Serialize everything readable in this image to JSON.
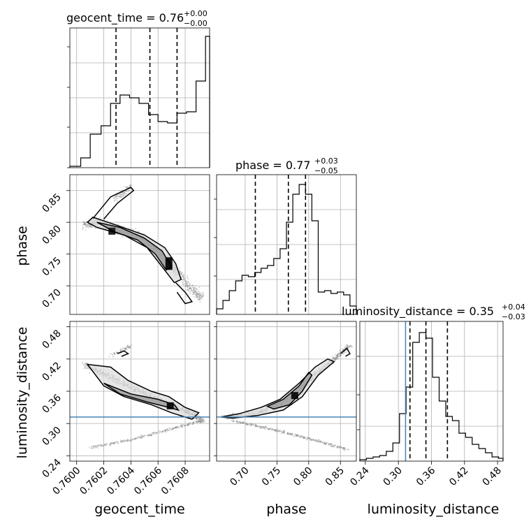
{
  "figure": {
    "background": "#ffffff",
    "truth_color": "#4682b4"
  },
  "chart_data": [
    {
      "type": "histogram",
      "panel": "geocent_time-1d",
      "title_text": "geocent_time = 0.76",
      "title_sup": "+0.00",
      "title_sub": "−0.00",
      "xlim": [
        0.75995,
        0.76098
      ],
      "quantile_lines": [
        0.76029,
        0.76054,
        0.76074
      ],
      "bins_x": [
        0.75995,
        0.76003,
        0.7601,
        0.76018,
        0.76025,
        0.76032,
        0.76039,
        0.76046,
        0.76053,
        0.7606,
        0.76067,
        0.76074,
        0.76081,
        0.76088,
        0.76095
      ],
      "bins_h": [
        0.01,
        0.07,
        0.24,
        0.3,
        0.46,
        0.52,
        0.5,
        0.46,
        0.38,
        0.33,
        0.32,
        0.39,
        0.4,
        0.62,
        0.94
      ]
    },
    {
      "type": "scatter-contour",
      "panel": "phase-vs-geocent_time",
      "xlim": [
        0.75995,
        0.76098
      ],
      "ylim": [
        0.655,
        0.875
      ],
      "ylabel": "phase",
      "yticks": [
        0.7,
        0.75,
        0.8,
        0.85
      ],
      "density_path": [
        [
          0.76005,
          0.795
        ],
        [
          0.76015,
          0.8
        ],
        [
          0.7603,
          0.79
        ],
        [
          0.76045,
          0.78
        ],
        [
          0.76055,
          0.765
        ],
        [
          0.76065,
          0.745
        ],
        [
          0.76075,
          0.72
        ],
        [
          0.76085,
          0.695
        ],
        [
          0.76093,
          0.68
        ]
      ],
      "contours": [
        [
          [
            0.76008,
            0.8
          ],
          [
            0.76012,
            0.808
          ],
          [
            0.7603,
            0.795
          ],
          [
            0.7605,
            0.78
          ],
          [
            0.76065,
            0.76
          ],
          [
            0.76073,
            0.735
          ],
          [
            0.76077,
            0.71
          ],
          [
            0.76072,
            0.705
          ],
          [
            0.76063,
            0.73
          ],
          [
            0.76052,
            0.76
          ],
          [
            0.76035,
            0.78
          ],
          [
            0.76015,
            0.792
          ],
          [
            0.76008,
            0.8
          ]
        ],
        [
          [
            0.76015,
            0.8
          ],
          [
            0.76032,
            0.792
          ],
          [
            0.7605,
            0.775
          ],
          [
            0.76063,
            0.755
          ],
          [
            0.7607,
            0.73
          ],
          [
            0.76066,
            0.725
          ],
          [
            0.76058,
            0.75
          ],
          [
            0.76045,
            0.772
          ],
          [
            0.76028,
            0.785
          ],
          [
            0.76015,
            0.8
          ]
        ],
        [
          [
            0.76012,
            0.806
          ],
          [
            0.76025,
            0.84
          ],
          [
            0.7604,
            0.855
          ],
          [
            0.76042,
            0.85
          ],
          [
            0.7603,
            0.83
          ],
          [
            0.7602,
            0.805
          ]
        ],
        [
          [
            0.76073,
            0.705
          ],
          [
            0.7608,
            0.69
          ],
          [
            0.76085,
            0.675
          ],
          [
            0.7608,
            0.672
          ],
          [
            0.76074,
            0.69
          ]
        ]
      ]
    },
    {
      "type": "histogram",
      "panel": "phase-1d",
      "title_text": "phase = 0.77",
      "title_sup": "+0.03",
      "title_sub": "−0.05",
      "xlim": [
        0.655,
        0.875
      ],
      "quantile_lines": [
        0.716,
        0.768,
        0.795
      ],
      "bins_x": [
        0.655,
        0.665,
        0.675,
        0.685,
        0.695,
        0.705,
        0.715,
        0.725,
        0.735,
        0.745,
        0.755,
        0.765,
        0.775,
        0.785,
        0.795,
        0.805,
        0.815,
        0.825,
        0.835,
        0.845,
        0.855,
        0.865
      ],
      "bins_h": [
        0.04,
        0.1,
        0.17,
        0.24,
        0.28,
        0.27,
        0.3,
        0.33,
        0.35,
        0.4,
        0.47,
        0.66,
        0.86,
        0.93,
        0.86,
        0.67,
        0.16,
        0.17,
        0.15,
        0.16,
        0.14,
        0.06
      ]
    },
    {
      "type": "scatter-contour",
      "panel": "luminosity_distance-vs-geocent_time",
      "xlim": [
        0.75995,
        0.76098
      ],
      "ylim": [
        0.23,
        0.49
      ],
      "ylabel": "luminosity_distance",
      "xlabel": "geocent_time",
      "yticks": [
        0.24,
        0.3,
        0.36,
        0.42,
        0.48
      ],
      "xticks": [
        "0.7600",
        "0.7602",
        "0.7604",
        "0.7606",
        "0.7608"
      ],
      "xtick_values": [
        0.76,
        0.7602,
        0.7604,
        0.7606,
        0.7608
      ],
      "truth_y": 0.312,
      "contours": [
        [
          [
            0.76008,
            0.41
          ],
          [
            0.76025,
            0.405
          ],
          [
            0.76038,
            0.38
          ],
          [
            0.76055,
            0.36
          ],
          [
            0.76068,
            0.35
          ],
          [
            0.7608,
            0.33
          ],
          [
            0.7609,
            0.32
          ],
          [
            0.76085,
            0.308
          ],
          [
            0.7607,
            0.32
          ],
          [
            0.76055,
            0.335
          ],
          [
            0.76035,
            0.35
          ],
          [
            0.7602,
            0.37
          ],
          [
            0.76008,
            0.41
          ]
        ],
        [
          [
            0.7602,
            0.375
          ],
          [
            0.7604,
            0.355
          ],
          [
            0.7606,
            0.345
          ],
          [
            0.76072,
            0.335
          ],
          [
            0.76075,
            0.325
          ],
          [
            0.76068,
            0.33
          ],
          [
            0.76052,
            0.34
          ],
          [
            0.76032,
            0.355
          ],
          [
            0.7602,
            0.375
          ]
        ],
        [
          [
            0.7603,
            0.43
          ],
          [
            0.76035,
            0.435
          ],
          [
            0.76038,
            0.43
          ],
          [
            0.76033,
            0.425
          ]
        ]
      ]
    },
    {
      "type": "scatter-contour",
      "panel": "luminosity_distance-vs-phase",
      "xlim": [
        0.655,
        0.875
      ],
      "ylim": [
        0.23,
        0.49
      ],
      "xlabel": "phase",
      "xticks": [
        "0.70",
        "0.75",
        "0.80",
        "0.85"
      ],
      "xtick_values": [
        0.7,
        0.75,
        0.8,
        0.85
      ],
      "truth_y": 0.312,
      "contours": [
        [
          [
            0.662,
            0.312
          ],
          [
            0.69,
            0.318
          ],
          [
            0.725,
            0.33
          ],
          [
            0.755,
            0.345
          ],
          [
            0.785,
            0.375
          ],
          [
            0.81,
            0.405
          ],
          [
            0.83,
            0.42
          ],
          [
            0.84,
            0.415
          ],
          [
            0.815,
            0.39
          ],
          [
            0.79,
            0.35
          ],
          [
            0.76,
            0.325
          ],
          [
            0.72,
            0.315
          ],
          [
            0.68,
            0.31
          ],
          [
            0.662,
            0.312
          ]
        ],
        [
          [
            0.735,
            0.332
          ],
          [
            0.76,
            0.345
          ],
          [
            0.785,
            0.37
          ],
          [
            0.8,
            0.395
          ],
          [
            0.805,
            0.39
          ],
          [
            0.79,
            0.36
          ],
          [
            0.77,
            0.335
          ],
          [
            0.745,
            0.327
          ],
          [
            0.735,
            0.332
          ]
        ],
        [
          [
            0.85,
            0.43
          ],
          [
            0.86,
            0.44
          ],
          [
            0.865,
            0.43
          ],
          [
            0.858,
            0.425
          ]
        ]
      ]
    },
    {
      "type": "histogram",
      "panel": "luminosity_distance-1d",
      "title_text": "luminosity_distance = 0.35",
      "title_sup": "+0.04",
      "title_sub": "−0.03",
      "xlim": [
        0.23,
        0.49
      ],
      "xlabel": "luminosity_distance",
      "xticks": [
        "0.24",
        "0.30",
        "0.36",
        "0.42",
        "0.48"
      ],
      "xtick_values": [
        0.24,
        0.3,
        0.36,
        0.42,
        0.48
      ],
      "quantile_lines": [
        0.321,
        0.35,
        0.389
      ],
      "truth_x": 0.313,
      "bins_x": [
        0.23,
        0.242,
        0.254,
        0.266,
        0.278,
        0.29,
        0.302,
        0.314,
        0.326,
        0.338,
        0.35,
        0.362,
        0.374,
        0.386,
        0.398,
        0.41,
        0.422,
        0.434,
        0.446,
        0.458,
        0.47,
        0.482
      ],
      "bins_h": [
        0.01,
        0.02,
        0.03,
        0.04,
        0.07,
        0.13,
        0.34,
        0.53,
        0.85,
        0.92,
        0.88,
        0.6,
        0.43,
        0.32,
        0.29,
        0.2,
        0.17,
        0.12,
        0.09,
        0.06,
        0.03,
        0.02
      ]
    }
  ]
}
